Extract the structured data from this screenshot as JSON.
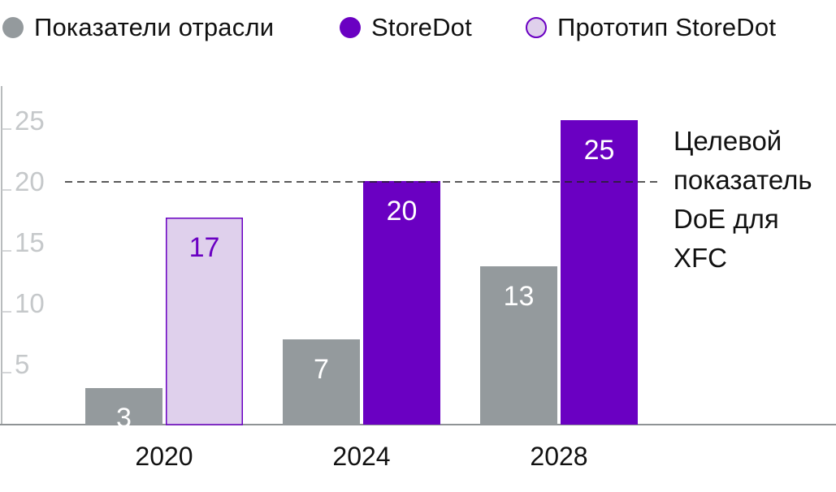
{
  "chart_data": {
    "type": "bar",
    "categories": [
      "2020",
      "2024",
      "2028"
    ],
    "series": [
      {
        "name": "Показатели отрасли",
        "values": [
          3,
          7,
          13
        ],
        "color": "#949a9d",
        "text_color": "#ffffff",
        "outline": ""
      },
      {
        "name": "StoreDot",
        "values": [
          null,
          20,
          25
        ],
        "color": "#6a00c2",
        "text_color": "#ffffff",
        "outline": ""
      },
      {
        "name": "Прототип StoreDot",
        "values": [
          17,
          null,
          null
        ],
        "color": "#dfd0ec",
        "text_color": "#6a00c2",
        "outline": "#6a00c2"
      }
    ],
    "legend": [
      "Показатели отрасли",
      "StoreDot",
      "Прототип StoreDot"
    ],
    "yticks": [
      5,
      10,
      15,
      20,
      25
    ],
    "ylim": [
      0,
      28
    ],
    "reference_line": {
      "value": 20,
      "style": "dashed",
      "label_lines": [
        "Целевой",
        "показатель",
        "DoE для",
        "XFC"
      ]
    }
  }
}
